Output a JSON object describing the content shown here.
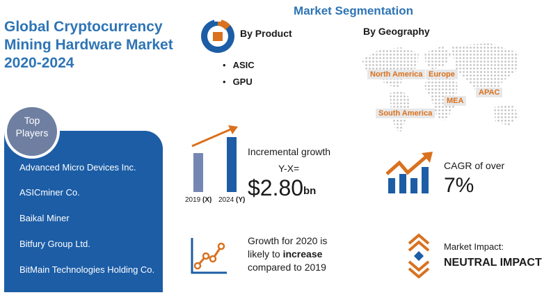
{
  "title": [
    "Global Cryptocurrency",
    "Mining Hardware Market",
    "2020-2024"
  ],
  "segmentation": {
    "heading": "Market Segmentation",
    "product": {
      "heading": "By Product",
      "items": [
        "ASIC",
        "GPU"
      ]
    },
    "geography": {
      "heading": "By Geography",
      "regions": [
        "North America",
        "Europe",
        "APAC",
        "MEA",
        "South America"
      ]
    }
  },
  "top_players": {
    "heading": [
      "Top",
      "Players"
    ],
    "items": [
      "Advanced Micro Devices Inc.",
      "ASICminer Co.",
      "Baikal Miner",
      "Bitfury Group Ltd.",
      "BitMain Technologies Holding Co."
    ]
  },
  "incremental_growth": {
    "label": "Incremental growth",
    "sublabel": "Y-X=",
    "value": "$2.80",
    "unit": "bn",
    "bars": [
      {
        "year": "2019",
        "tag": "(X)"
      },
      {
        "year": "2024",
        "tag": "(Y)"
      }
    ]
  },
  "cagr": {
    "label": "CAGR of over",
    "value": "7%"
  },
  "growth_2020": {
    "prefix": "Growth for 2020 is",
    "likely": "likely to ",
    "emphasis": "increase",
    "suffix": "compared to 2019"
  },
  "market_impact": {
    "label": "Market Impact:",
    "value": "NEUTRAL IMPACT"
  },
  "colors": {
    "primary": "#1C5DA6",
    "title_blue": "#2E74B5",
    "accent_orange": "#D9711E",
    "muted_blue": "#7487B3"
  },
  "icons": [
    "pie-product-icon",
    "world-map-icon",
    "growth-arrow-icon",
    "trend-chart-icon",
    "up-down-impact-icon"
  ]
}
